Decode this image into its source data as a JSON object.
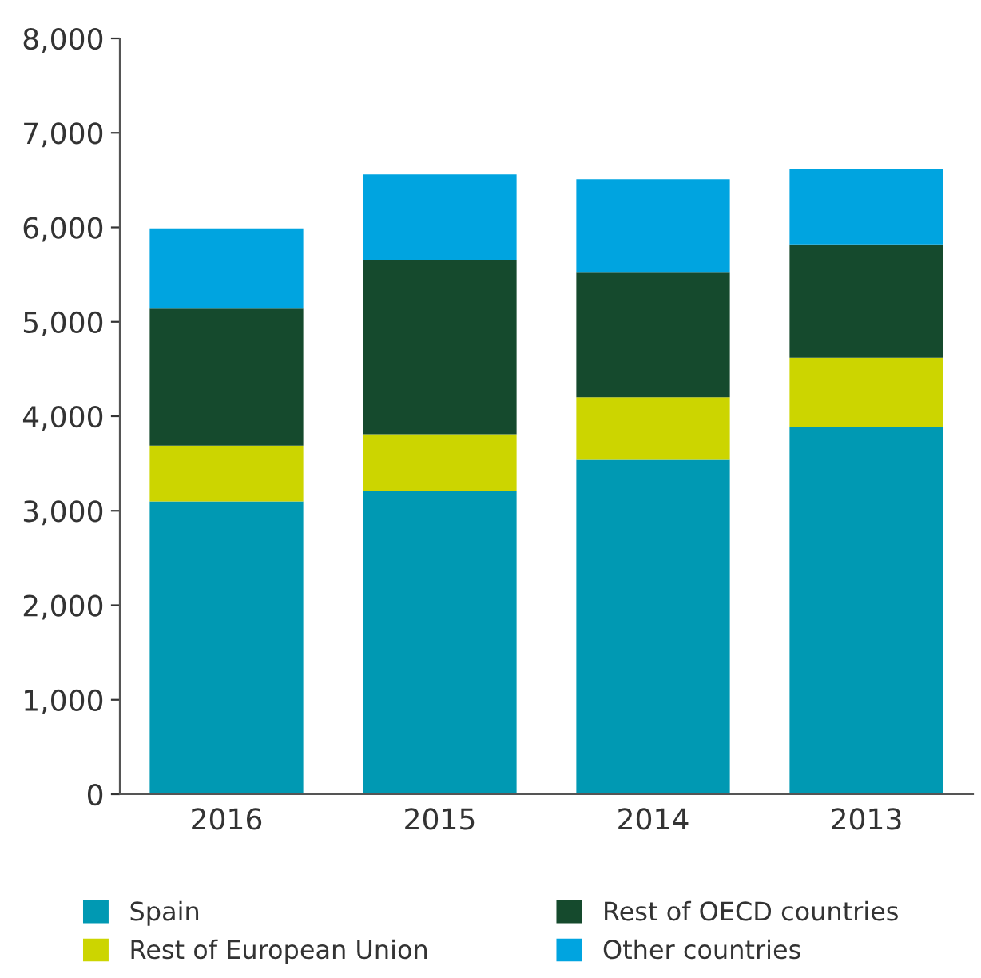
{
  "chart_data": {
    "type": "bar",
    "stacked": true,
    "categories": [
      "2016",
      "2015",
      "2014",
      "2013"
    ],
    "series": [
      {
        "name": "Spain",
        "color": "#0099b3",
        "values": [
          3100,
          3210,
          3540,
          3890
        ]
      },
      {
        "name": "Rest of European Union",
        "color": "#ccd500",
        "values": [
          590,
          600,
          660,
          730
        ]
      },
      {
        "name": "Rest of OECD countries",
        "color": "#154a2d",
        "values": [
          1450,
          1840,
          1320,
          1200
        ]
      },
      {
        "name": "Other countries",
        "color": "#00a4e0",
        "values": [
          850,
          910,
          990,
          800
        ]
      }
    ],
    "ylim": [
      0,
      8000
    ],
    "yticks": [
      {
        "value": 0,
        "label": "0"
      },
      {
        "value": 1000,
        "label": "1,000"
      },
      {
        "value": 2000,
        "label": "2,000"
      },
      {
        "value": 3000,
        "label": "3,000"
      },
      {
        "value": 4000,
        "label": "4,000"
      },
      {
        "value": 5000,
        "label": "5,000"
      },
      {
        "value": 6000,
        "label": "6,000"
      },
      {
        "value": 7000,
        "label": "7,000"
      },
      {
        "value": 8000,
        "label": "8,000"
      }
    ],
    "grid": false,
    "legend": "bottom"
  }
}
